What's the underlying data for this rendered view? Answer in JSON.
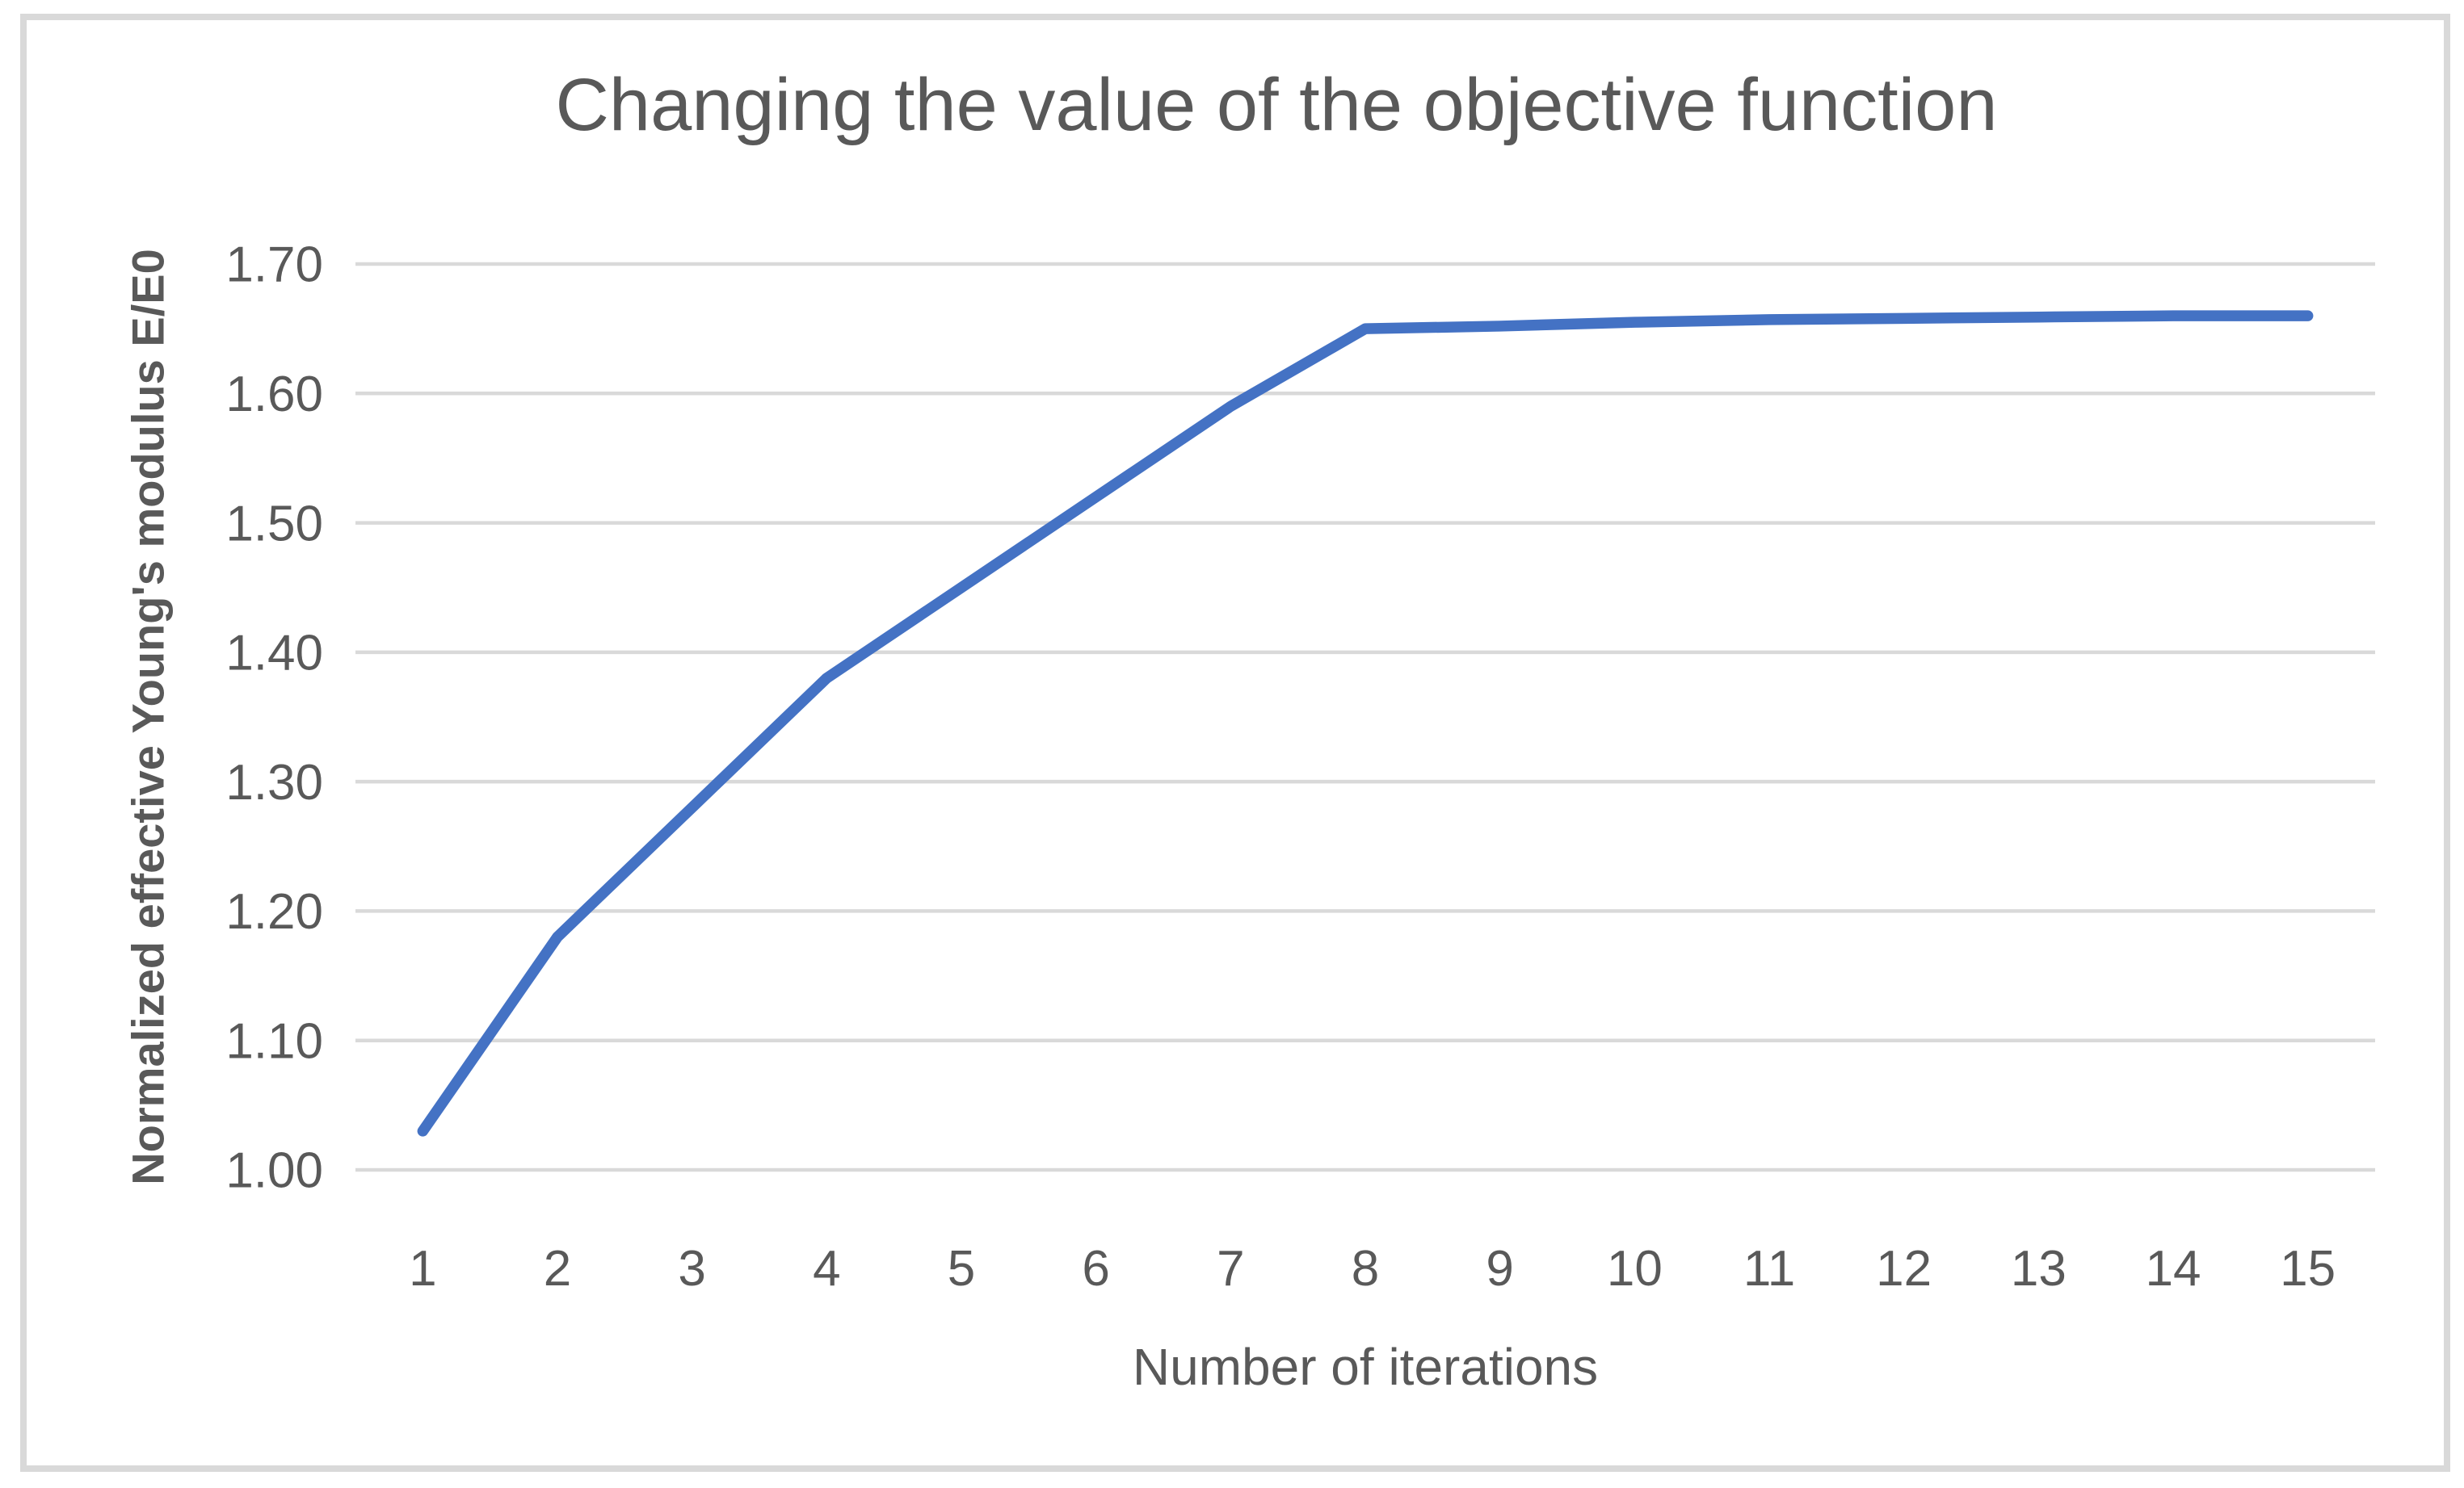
{
  "chart_data": {
    "type": "line",
    "title": "Changing the value of the objective function",
    "xlabel": "Number of iterations",
    "ylabel": "Normalized effective Young's modulus E/E0",
    "x": [
      1,
      2,
      3,
      4,
      5,
      6,
      7,
      8,
      9,
      10,
      11,
      12,
      13,
      14,
      15
    ],
    "values": [
      1.03,
      1.18,
      1.28,
      1.38,
      1.45,
      1.52,
      1.59,
      1.65,
      1.652,
      1.655,
      1.657,
      1.658,
      1.659,
      1.66,
      1.66
    ],
    "series_name": "Normalized effective Young's modulus E/E0",
    "ylim": [
      1.0,
      1.7
    ],
    "ytick_step": 0.1,
    "ytick_labels": [
      "1.00",
      "1.10",
      "1.20",
      "1.30",
      "1.40",
      "1.50",
      "1.60",
      "1.70"
    ],
    "grid": true,
    "legend": "none",
    "colors": {
      "series": "#4472C4",
      "gridline": "#D9D9D9",
      "text": "#595959",
      "border": "#D9D9D9"
    }
  }
}
